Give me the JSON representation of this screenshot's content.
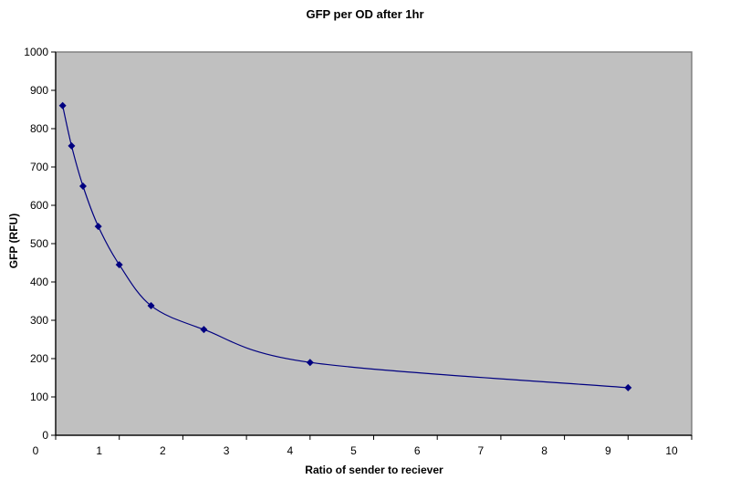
{
  "chart_data": {
    "type": "line",
    "title": "GFP per OD after 1hr",
    "xlabel": "Ratio of sender to reciever",
    "ylabel": "GFP (RFU)",
    "xlim": [
      0,
      10
    ],
    "ylim": [
      0,
      1000
    ],
    "x_ticks": [
      "0",
      "1",
      "2",
      "3",
      "4",
      "5",
      "6",
      "7",
      "8",
      "9",
      "10"
    ],
    "y_ticks": [
      "0",
      "100",
      "200",
      "300",
      "400",
      "500",
      "600",
      "700",
      "800",
      "900",
      "1000"
    ],
    "grid": false,
    "legend": null,
    "series": [
      {
        "name": "GFP per OD",
        "marker": "diamond",
        "smooth": true,
        "color": "#000080",
        "x": [
          0.11,
          0.25,
          0.43,
          0.67,
          1.0,
          1.5,
          2.33,
          4.0,
          9.0
        ],
        "y": [
          860,
          755,
          650,
          545,
          445,
          338,
          276,
          190,
          124
        ]
      }
    ]
  },
  "colors": {
    "plot_background": "#c0c0c0",
    "series_line": "#000080",
    "plot_border": "#808080",
    "axis": "#000000"
  }
}
